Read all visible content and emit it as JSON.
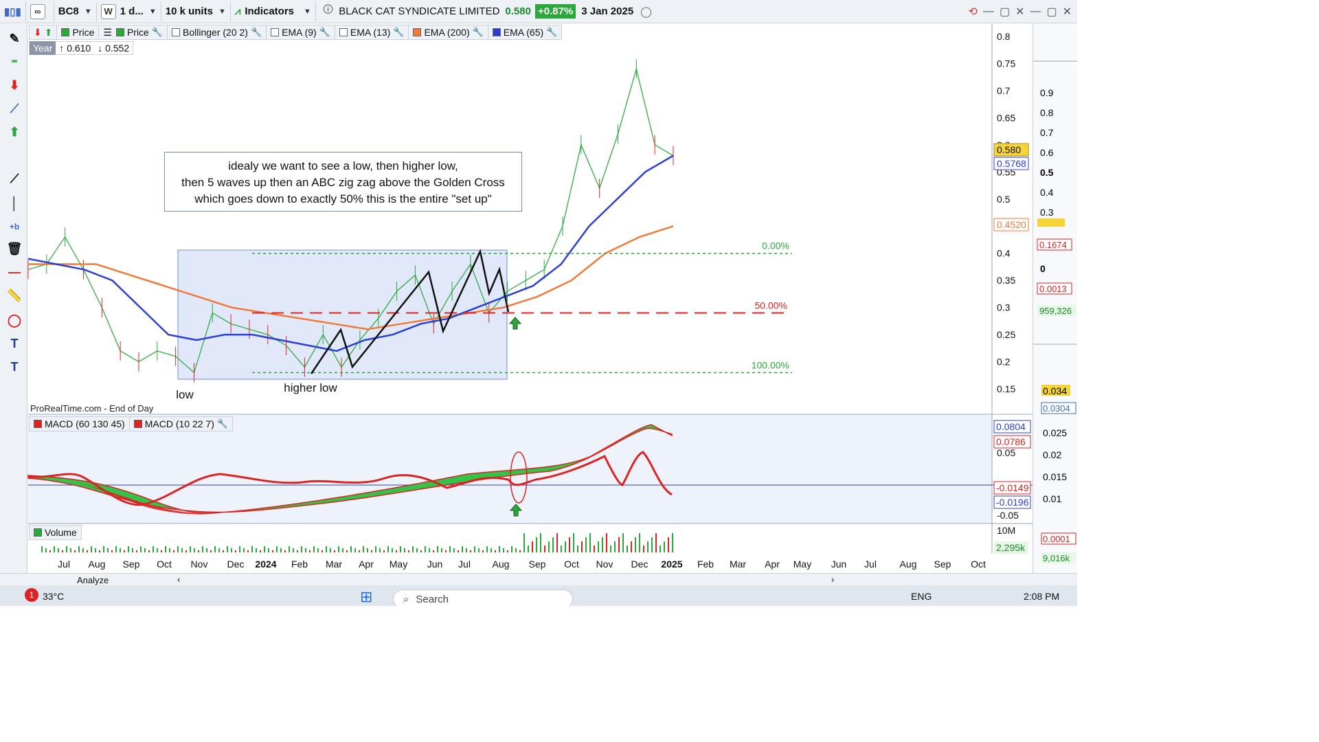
{
  "toolbar": {
    "symbol": "BC8",
    "w_label": "W",
    "period": "1 d...",
    "units": "10 k units",
    "indicators_label": "Indicators",
    "instrument_name": "BLACK CAT SYNDICATE LIMITED",
    "last_price": "0.580",
    "change": "+0.87%",
    "date": "3 Jan 2025"
  },
  "legend": {
    "items": [
      {
        "label": "Price",
        "color": "#2aa83a"
      },
      {
        "label": "Price",
        "color": "#2aa83a"
      },
      {
        "label": "Bollinger (20 2)",
        "color": "#ffffff"
      },
      {
        "label": "EMA (9)",
        "color": "#ffffff"
      },
      {
        "label": "EMA (13)",
        "color": "#ffffff"
      },
      {
        "label": "EMA (200)",
        "color": "#f07a3a"
      },
      {
        "label": "EMA (65)",
        "color": "#2b3fd6"
      }
    ]
  },
  "yearbox": {
    "label": "Year",
    "high": "0.610",
    "low": "0.552"
  },
  "annotation": {
    "line1": "idealy we want to see a low, then higher low,",
    "line2": "then 5 waves up then an ABC zig zag above the Golden Cross",
    "line3": "which goes down to exactly 50% this is the entire \"set up\""
  },
  "labels": {
    "low": "low",
    "higher_low": "higher low",
    "source": "ProRealTime.com - End of Day"
  },
  "macd_legend": {
    "a": "MACD (60 130 45)",
    "b": "MACD (10 22 7)"
  },
  "volume_legend": "Volume",
  "fib": {
    "l0": "0.00%",
    "l50": "50.00%",
    "l100": "100.00%"
  },
  "price_badges": {
    "last": "0.580",
    "ema65": "0.5768",
    "ema200": "0.4520"
  },
  "macd_badges": {
    "a": "0.0804",
    "b": "0.0786",
    "c": "-0.0149",
    "d": "-0.0196"
  },
  "volume_badges": {
    "a": "2,295k"
  },
  "volume_axis": [
    "10M"
  ],
  "chart_data": {
    "type": "line",
    "title": "BLACK CAT SYNDICATE LIMITED",
    "x_ticks": [
      "Jul",
      "Aug",
      "Sep",
      "Oct",
      "Nov",
      "Dec",
      "2024",
      "Feb",
      "Mar",
      "Apr",
      "May",
      "Jun",
      "Jul",
      "Aug",
      "Sep",
      "Oct",
      "Nov",
      "Dec",
      "2025",
      "Feb",
      "Mar",
      "Apr",
      "May",
      "Jun",
      "Jul",
      "Aug",
      "Sep",
      "Oct"
    ],
    "y_ticks": [
      0.15,
      0.2,
      0.25,
      0.3,
      0.35,
      0.4,
      0.5,
      0.55,
      0.6,
      0.65,
      0.7,
      0.75,
      0.8
    ],
    "ylim": [
      0.13,
      0.82
    ],
    "macd_ticks": [
      0.05,
      -0.05
    ],
    "series": [
      {
        "name": "Price",
        "values": [
          0.37,
          0.38,
          0.43,
          0.37,
          0.3,
          0.22,
          0.2,
          0.22,
          0.21,
          0.18,
          0.29,
          0.27,
          0.26,
          0.25,
          0.23,
          0.19,
          0.25,
          0.19,
          0.24,
          0.28,
          0.33,
          0.36,
          0.27,
          0.33,
          0.38,
          0.29,
          0.33,
          0.35,
          0.37,
          0.45,
          0.6,
          0.52,
          0.62,
          0.74,
          0.6,
          0.58
        ]
      },
      {
        "name": "EMA (65)",
        "values": [
          0.39,
          0.38,
          0.37,
          0.35,
          0.3,
          0.25,
          0.24,
          0.25,
          0.25,
          0.24,
          0.23,
          0.22,
          0.24,
          0.25,
          0.27,
          0.28,
          0.3,
          0.32,
          0.34,
          0.38,
          0.45,
          0.5,
          0.55,
          0.58
        ]
      },
      {
        "name": "EMA (200)",
        "values": [
          0.38,
          0.38,
          0.38,
          0.36,
          0.34,
          0.32,
          0.3,
          0.29,
          0.28,
          0.27,
          0.26,
          0.27,
          0.28,
          0.29,
          0.3,
          0.32,
          0.35,
          0.4,
          0.43,
          0.45
        ]
      }
    ],
    "fib_levels": [
      {
        "label": "0.00%",
        "value": 0.4
      },
      {
        "label": "50.00%",
        "value": 0.29
      },
      {
        "label": "100.00%",
        "value": 0.18
      }
    ]
  }
}
